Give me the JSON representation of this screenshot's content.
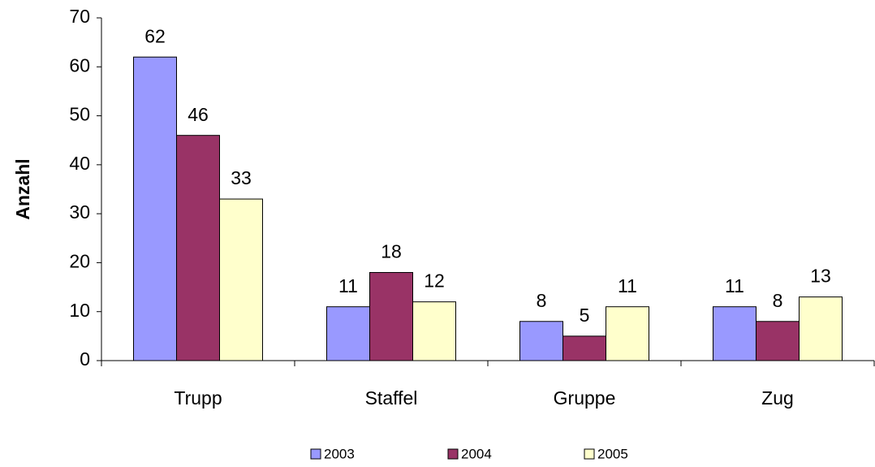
{
  "chart_data": {
    "type": "bar",
    "y_label": "Anzahl",
    "categories": [
      "Trupp",
      "Staffel",
      "Gruppe",
      "Zug"
    ],
    "series": [
      {
        "name": "2003",
        "color": "#9999ff",
        "values": [
          62,
          11,
          8,
          11
        ]
      },
      {
        "name": "2004",
        "color": "#993366",
        "values": [
          46,
          18,
          5,
          8
        ]
      },
      {
        "name": "2005",
        "color": "#ffffcc",
        "values": [
          33,
          12,
          11,
          13
        ]
      }
    ],
    "ylim": [
      0,
      70
    ],
    "yticks": [
      0,
      10,
      20,
      30,
      40,
      50,
      60,
      70
    ],
    "grid": false,
    "legend": "bottom"
  }
}
